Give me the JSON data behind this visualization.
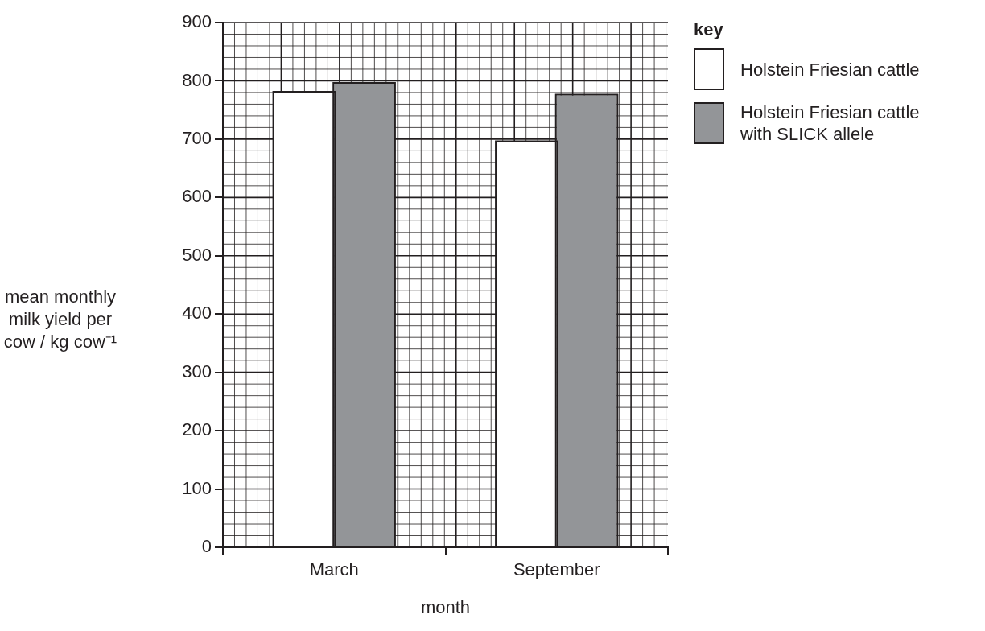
{
  "chart_data": {
    "type": "bar",
    "xlabel": "month",
    "ylabel": "mean monthly milk yield per cow / kg cow⁻¹",
    "legend_title": "key",
    "categories": [
      "March",
      "September"
    ],
    "series": [
      {
        "name": "Holstein Friesian cattle",
        "color": "#ffffff",
        "values": [
          780,
          695
        ]
      },
      {
        "name": "Holstein Friesian cattle with SLICK allele",
        "color": "#939598",
        "values": [
          795,
          775
        ]
      }
    ],
    "ylim": [
      0,
      900
    ],
    "yticks": [
      0,
      100,
      200,
      300,
      400,
      500,
      600,
      700,
      800,
      900
    ],
    "grid": true,
    "legend": "top right"
  }
}
